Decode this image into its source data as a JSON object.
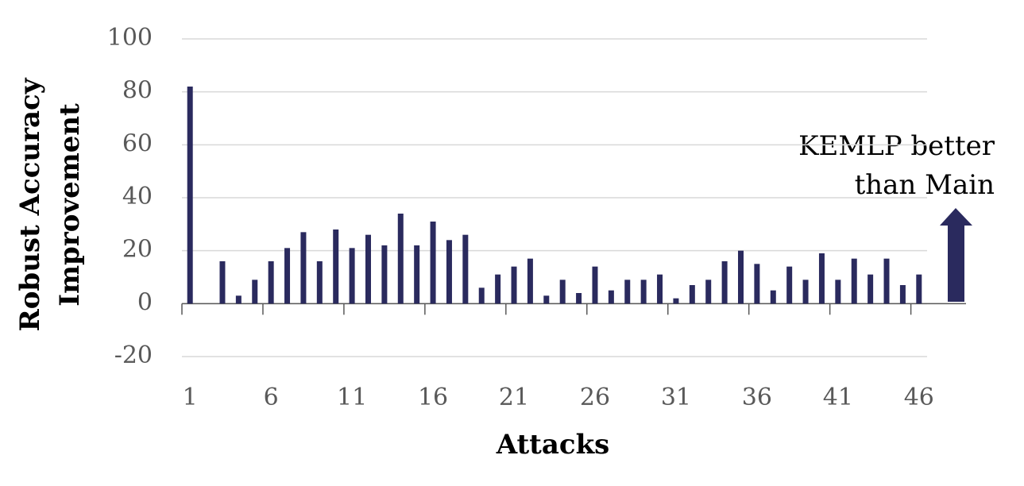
{
  "chart_data": {
    "type": "bar",
    "x_label": "Attacks",
    "y_label": [
      "Robust Accuracy",
      "Improvement"
    ],
    "annotation": [
      "KEMLP better",
      "than Main"
    ],
    "categories": [
      "1",
      null,
      null,
      null,
      null,
      "6",
      null,
      null,
      null,
      null,
      "11",
      null,
      null,
      null,
      null,
      "16",
      null,
      null,
      null,
      null,
      "21",
      null,
      null,
      null,
      null,
      "26",
      null,
      null,
      null,
      null,
      "31",
      null,
      null,
      null,
      null,
      "36",
      null,
      null,
      null,
      null,
      "41",
      null,
      null,
      null,
      null,
      "46"
    ],
    "values": [
      82,
      0,
      16,
      3,
      9,
      16,
      21,
      27,
      16,
      28,
      21,
      26,
      22,
      34,
      22,
      31,
      24,
      26,
      6,
      11,
      14,
      17,
      3,
      9,
      4,
      14,
      5,
      9,
      9,
      11,
      2,
      7,
      9,
      16,
      20,
      15,
      5,
      14,
      9,
      19,
      9,
      17,
      11,
      17,
      7,
      11
    ],
    "color": "#2a2a5e",
    "ylim": [
      -20,
      100
    ],
    "yticks": [
      -20,
      0,
      20,
      40,
      60,
      80,
      100
    ],
    "grid": true
  }
}
